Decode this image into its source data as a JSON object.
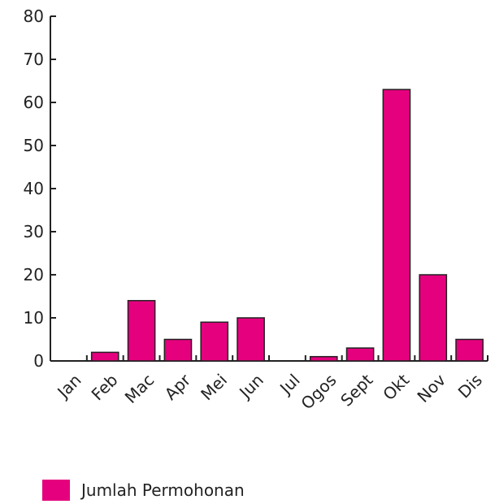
{
  "chart_data": {
    "type": "bar",
    "categories": [
      "Jan",
      "Feb",
      "Mac",
      "Apr",
      "Mei",
      "Jun",
      "Jul",
      "Ogos",
      "Sept",
      "Okt",
      "Nov",
      "Dis"
    ],
    "series": [
      {
        "name": "Jumlah Permohonan",
        "values": [
          0,
          2,
          14,
          5,
          9,
          10,
          0,
          1,
          3,
          63,
          20,
          5
        ]
      }
    ],
    "title": "",
    "xlabel": "",
    "ylabel": "",
    "ylim": [
      0,
      80
    ],
    "yticks": [
      0,
      10,
      20,
      30,
      40,
      50,
      60,
      70,
      80
    ],
    "grid": false,
    "legend_position": "bottom-left",
    "bar_color": "#e5007e",
    "bar_edge_color": "#222222"
  }
}
